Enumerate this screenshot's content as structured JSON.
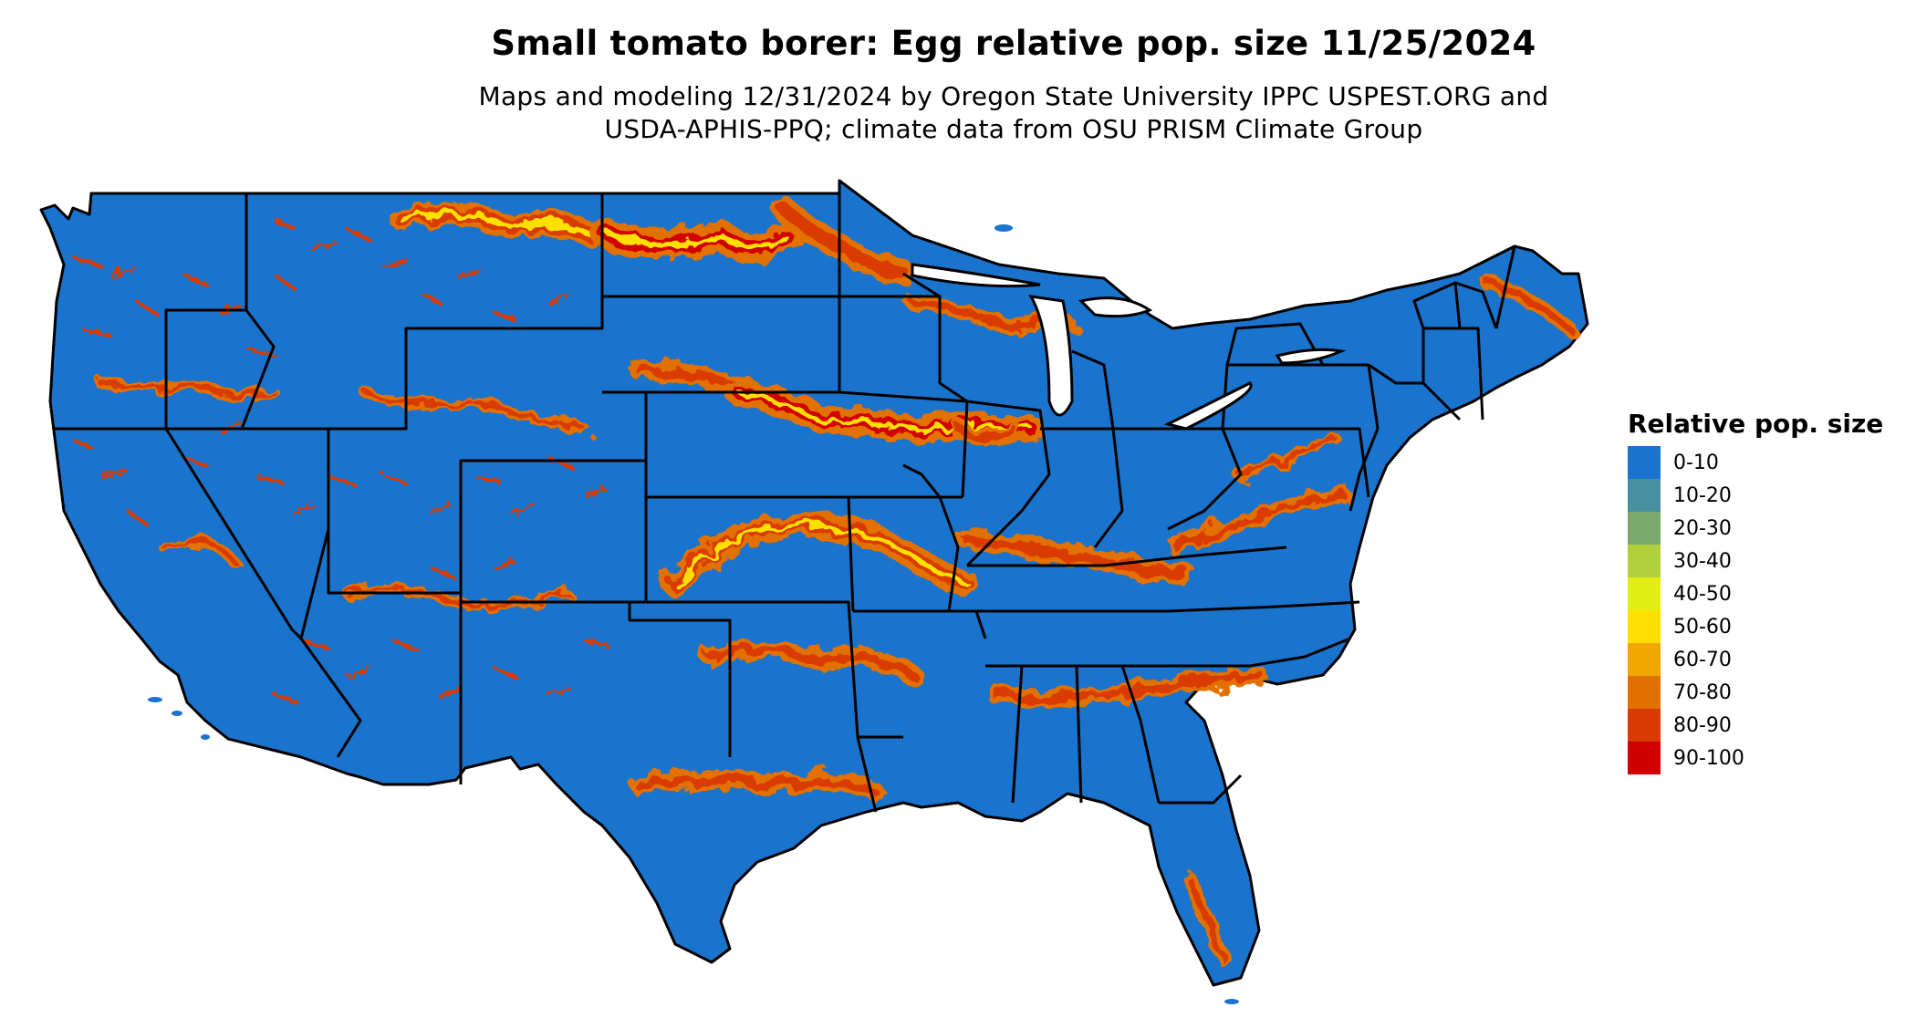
{
  "title": "Small tomato borer: Egg relative pop. size 11/25/2024",
  "subtitle_lines": [
    "Maps and modeling 12/31/2024 by Oregon State University IPPC USPEST.ORG and",
    "USDA-APHIS-PPQ; climate data from OSU PRISM Climate Group"
  ],
  "legend": {
    "title": "Relative pop. size",
    "items": [
      {
        "label": "0-10",
        "color": "#1a73cc"
      },
      {
        "label": "10-20",
        "color": "#4690a0"
      },
      {
        "label": "20-30",
        "color": "#7aaa6e"
      },
      {
        "label": "30-40",
        "color": "#b2cf3c"
      },
      {
        "label": "40-50",
        "color": "#e3ee14"
      },
      {
        "label": "50-60",
        "color": "#fee000"
      },
      {
        "label": "60-70",
        "color": "#f2a600"
      },
      {
        "label": "70-80",
        "color": "#e37100"
      },
      {
        "label": "80-90",
        "color": "#d93a00"
      },
      {
        "label": "90-100",
        "color": "#d10000"
      }
    ]
  }
}
